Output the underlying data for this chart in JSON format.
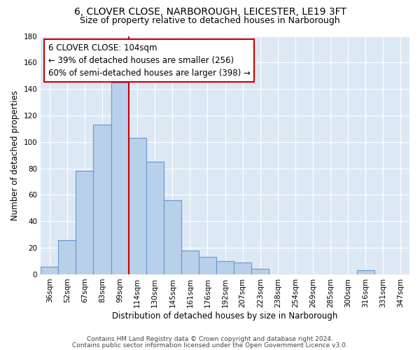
{
  "title": "6, CLOVER CLOSE, NARBOROUGH, LEICESTER, LE19 3FT",
  "subtitle": "Size of property relative to detached houses in Narborough",
  "xlabel": "Distribution of detached houses by size in Narborough",
  "ylabel": "Number of detached properties",
  "bar_labels": [
    "36sqm",
    "52sqm",
    "67sqm",
    "83sqm",
    "99sqm",
    "114sqm",
    "130sqm",
    "145sqm",
    "161sqm",
    "176sqm",
    "192sqm",
    "207sqm",
    "223sqm",
    "238sqm",
    "254sqm",
    "269sqm",
    "285sqm",
    "300sqm",
    "316sqm",
    "331sqm",
    "347sqm"
  ],
  "bar_values": [
    6,
    26,
    78,
    113,
    145,
    103,
    85,
    56,
    18,
    13,
    10,
    9,
    4,
    0,
    0,
    0,
    0,
    0,
    3,
    0,
    0
  ],
  "bar_color": "#b8d0ea",
  "bar_edge_color": "#6699cc",
  "vline_color": "#cc0000",
  "vline_index": 4.5,
  "ylim": [
    0,
    180
  ],
  "yticks": [
    0,
    20,
    40,
    60,
    80,
    100,
    120,
    140,
    160,
    180
  ],
  "annotation_title": "6 CLOVER CLOSE: 104sqm",
  "annotation_line1": "← 39% of detached houses are smaller (256)",
  "annotation_line2": "60% of semi-detached houses are larger (398) →",
  "annotation_box_edge": "#cc0000",
  "footer1": "Contains HM Land Registry data © Crown copyright and database right 2024.",
  "footer2": "Contains public sector information licensed under the Open Government Licence v3.0.",
  "bg_color": "#dde8f5",
  "grid_color": "#ffffff",
  "title_fontsize": 10,
  "subtitle_fontsize": 9,
  "axis_label_fontsize": 8.5,
  "tick_fontsize": 7.5,
  "annotation_fontsize": 8.5,
  "footer_fontsize": 6.5
}
